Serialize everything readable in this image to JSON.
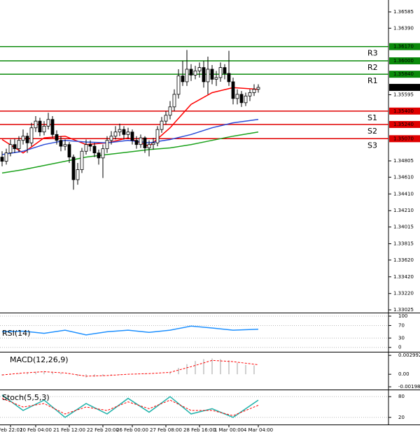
{
  "chart_data": {
    "type": "candlestick",
    "xlim": [
      -0.5,
      92
    ],
    "ylim": [
      1.32992,
      1.36727
    ],
    "yticks": [
      1.36585,
      {
        "value": 1.3639,
        "label": "1.36390"
      },
      1.35595,
      1.34805,
      {
        "value": 1.3461,
        "label": "1.34610"
      },
      {
        "value": 1.3441,
        "label": "1.34410"
      },
      {
        "value": 1.3421,
        "label": "1.34210"
      },
      1.34015,
      1.33815,
      {
        "value": 1.3362,
        "label": "1.33620"
      },
      {
        "value": 1.3342,
        "label": "1.33420"
      },
      {
        "value": 1.3322,
        "label": "1.33220"
      },
      1.33025
    ],
    "xticks": [
      {
        "value": 2,
        "label": "Feb 22:01"
      },
      {
        "value": 8,
        "label": "20 Feb 04:00"
      },
      {
        "value": 16,
        "label": "21 Feb 12:00"
      },
      {
        "value": 24,
        "label": "22 Feb 20:00"
      },
      {
        "value": 31,
        "label": "26 Feb 00:00"
      },
      {
        "value": 39,
        "label": "27 Feb 08:00"
      },
      {
        "value": 47,
        "label": "28 Feb 16:00"
      },
      {
        "value": 54,
        "label": "1 Mar 00:00"
      },
      {
        "value": 61,
        "label": "4 Mar 04:00"
      }
    ],
    "candles": {
      "open": [
        1.3485,
        1.348,
        1.349,
        1.35,
        1.3495,
        1.3505,
        1.351,
        1.3502,
        1.352,
        1.3528,
        1.3515,
        1.3522,
        1.353,
        1.3512,
        1.3505,
        1.3498,
        1.35,
        1.3485,
        1.3458,
        1.347,
        1.3492,
        1.35,
        1.3498,
        1.349,
        1.3484,
        1.3495,
        1.3505,
        1.351,
        1.3515,
        1.3518,
        1.3512,
        1.3515,
        1.3505,
        1.35,
        1.3508,
        1.3496,
        1.35,
        1.3502,
        1.3518,
        1.3528,
        1.3535,
        1.3545,
        1.356,
        1.3582,
        1.3575,
        1.359,
        1.3583,
        1.3588,
        1.3592,
        1.3575,
        1.359,
        1.3578,
        1.358,
        1.3592,
        1.3585,
        1.3575,
        1.3555,
        1.356,
        1.355,
        1.3558,
        1.3562,
        1.3566
      ],
      "high": [
        1.3492,
        1.3495,
        1.3506,
        1.3507,
        1.351,
        1.3518,
        1.3514,
        1.3526,
        1.3534,
        1.3532,
        1.3528,
        1.3538,
        1.3534,
        1.3517,
        1.351,
        1.3506,
        1.3503,
        1.3488,
        1.3478,
        1.3496,
        1.3506,
        1.3505,
        1.3502,
        1.3494,
        1.35,
        1.351,
        1.3516,
        1.3522,
        1.3525,
        1.3522,
        1.352,
        1.3518,
        1.351,
        1.3512,
        1.351,
        1.3505,
        1.3508,
        1.3522,
        1.3533,
        1.354,
        1.3552,
        1.3566,
        1.359,
        1.36,
        1.3613,
        1.3596,
        1.3594,
        1.3598,
        1.36,
        1.3605,
        1.3595,
        1.3588,
        1.3598,
        1.3596,
        1.3612,
        1.358,
        1.3566,
        1.3564,
        1.3562,
        1.3566,
        1.3572,
        1.3572
      ],
      "low": [
        1.3474,
        1.3476,
        1.3486,
        1.349,
        1.3491,
        1.35,
        1.349,
        1.3498,
        1.3515,
        1.351,
        1.3511,
        1.3518,
        1.3508,
        1.35,
        1.3492,
        1.3493,
        1.3478,
        1.3446,
        1.3452,
        1.3466,
        1.3488,
        1.3492,
        1.3485,
        1.3476,
        1.346,
        1.349,
        1.35,
        1.3506,
        1.351,
        1.3506,
        1.3507,
        1.35,
        1.3495,
        1.3496,
        1.349,
        1.3486,
        1.3494,
        1.3498,
        1.3514,
        1.3524,
        1.353,
        1.354,
        1.3555,
        1.357,
        1.357,
        1.3576,
        1.3578,
        1.358,
        1.3568,
        1.356,
        1.3572,
        1.357,
        1.3575,
        1.3578,
        1.357,
        1.3548,
        1.3548,
        1.3545,
        1.3546,
        1.3552,
        1.3558,
        1.3562
      ],
      "close": [
        1.348,
        1.349,
        1.35,
        1.3495,
        1.3505,
        1.351,
        1.3502,
        1.352,
        1.3528,
        1.3515,
        1.3522,
        1.353,
        1.3512,
        1.3505,
        1.3498,
        1.35,
        1.3485,
        1.3458,
        1.347,
        1.3492,
        1.35,
        1.3498,
        1.349,
        1.3484,
        1.3495,
        1.3505,
        1.351,
        1.3515,
        1.3518,
        1.3512,
        1.3515,
        1.3505,
        1.35,
        1.3508,
        1.3496,
        1.35,
        1.3502,
        1.3518,
        1.3528,
        1.3535,
        1.3545,
        1.356,
        1.3582,
        1.3575,
        1.359,
        1.3583,
        1.3588,
        1.3592,
        1.3575,
        1.359,
        1.3578,
        1.358,
        1.3592,
        1.3585,
        1.3575,
        1.3555,
        1.356,
        1.355,
        1.3558,
        1.3562,
        1.3566,
        1.35683
      ]
    },
    "series": [
      {
        "color": "#ff0000",
        "x": [
          0,
          5,
          10,
          15,
          20,
          25,
          30,
          35,
          40,
          45,
          50,
          55,
          61
        ],
        "values": [
          1.3506,
          1.349,
          1.3508,
          1.351,
          1.35,
          1.3502,
          1.3508,
          1.3498,
          1.352,
          1.3548,
          1.3562,
          1.3568,
          1.3566
        ]
      },
      {
        "color": "#2a4bd7",
        "x": [
          0,
          5,
          10,
          15,
          20,
          25,
          30,
          35,
          40,
          45,
          50,
          55,
          61
        ],
        "values": [
          1.3488,
          1.3492,
          1.35,
          1.3505,
          1.3503,
          1.3502,
          1.3505,
          1.3502,
          1.3506,
          1.3512,
          1.352,
          1.3526,
          1.353
        ]
      },
      {
        "color": "#1ca21c",
        "x": [
          0,
          5,
          10,
          15,
          20,
          25,
          30,
          35,
          40,
          45,
          50,
          55,
          61
        ],
        "values": [
          1.3466,
          1.347,
          1.3475,
          1.348,
          1.3485,
          1.3488,
          1.3491,
          1.3494,
          1.3496,
          1.35,
          1.3505,
          1.351,
          1.3515
        ]
      }
    ],
    "levels": [
      {
        "name": "R3",
        "value": 1.3617,
        "label": "1.36170",
        "color": "#0a8a0a"
      },
      {
        "name": "R2",
        "value": 1.36,
        "label": "1.36000",
        "color": "#0a8a0a"
      },
      {
        "name": "R1",
        "value": 1.3584,
        "label": "1.35840",
        "color": "#0a8a0a"
      },
      {
        "name": "S1",
        "value": 1.354,
        "label": "1.35400",
        "color": "#e00000"
      },
      {
        "name": "S2",
        "value": 1.3524,
        "label": "1.35240",
        "color": "#e00000"
      },
      {
        "name": "S3",
        "value": 1.3507,
        "label": "1.35070",
        "color": "#e00000"
      }
    ],
    "last_price": 1.35683,
    "indicators": [
      {
        "type": "line",
        "title": "RSI(14)",
        "ylim": [
          -14,
          109
        ],
        "yticks": [
          100,
          70,
          30,
          0
        ],
        "series": [
          {
            "color": "#1e90ff",
            "x": [
              0,
              5,
              10,
              15,
              20,
              25,
              30,
              35,
              40,
              45,
              50,
              55,
              61
            ],
            "values": [
              50,
              52,
              45,
              55,
              40,
              50,
              55,
              48,
              55,
              68,
              62,
              55,
              58
            ]
          }
        ]
      },
      {
        "type": "macd",
        "title": "MACD(12,26,9)",
        "ylim": [
          -0.00242,
          0.00345
        ],
        "yticks": [
          0.002992,
          {
            "value": 0,
            "label": "0.00"
          },
          -0.001985
        ],
        "histogram": {
          "color": "#b0b0b0",
          "x": [
            0,
            2,
            4,
            6,
            8,
            10,
            12,
            14,
            16,
            18,
            20,
            22,
            24,
            26,
            28,
            30,
            32,
            34,
            36,
            38,
            40,
            42,
            44,
            46,
            48,
            50,
            52,
            54,
            56,
            58,
            60
          ],
          "values": [
            -0.0002,
            -0.0001,
            0.0001,
            0.0003,
            0.0004,
            0.0005,
            0.0004,
            0.0002,
            0,
            -0.0003,
            -0.0005,
            -0.0004,
            -0.0003,
            -0.0002,
            -0.0001,
            0,
            0.0001,
            0.0001,
            0,
            0,
            0.0004,
            0.001,
            0.0016,
            0.0021,
            0.0024,
            0.0025,
            0.0024,
            0.0022,
            0.0018,
            0.0015,
            0.0014
          ]
        },
        "series": [
          {
            "color": "#ff0000",
            "dash": true,
            "x": [
              0,
              5,
              10,
              15,
              20,
              25,
              30,
              35,
              40,
              45,
              50,
              55,
              61
            ],
            "values": [
              -0.0001,
              0.0002,
              0.0004,
              0.0002,
              -0.0003,
              -0.0002,
              0,
              0.0001,
              0.0003,
              0.0012,
              0.0022,
              0.002,
              0.0015
            ]
          }
        ]
      },
      {
        "type": "line",
        "title": "Stoch(5,5,3)",
        "ylim": [
          -0.7,
          98.6
        ],
        "yticks": [
          80,
          20
        ],
        "series": [
          {
            "color": "#20b2aa",
            "x": [
              0,
              5,
              10,
              15,
              20,
              25,
              30,
              35,
              40,
              45,
              50,
              55,
              61
            ],
            "values": [
              85,
              40,
              70,
              20,
              60,
              30,
              75,
              35,
              80,
              30,
              45,
              20,
              70
            ]
          },
          {
            "color": "#ff0000",
            "dash": true,
            "x": [
              0,
              5,
              10,
              15,
              20,
              25,
              30,
              35,
              40,
              45,
              50,
              55,
              61
            ],
            "values": [
              75,
              50,
              60,
              30,
              50,
              40,
              65,
              45,
              70,
              40,
              40,
              25,
              55
            ]
          }
        ]
      }
    ]
  }
}
